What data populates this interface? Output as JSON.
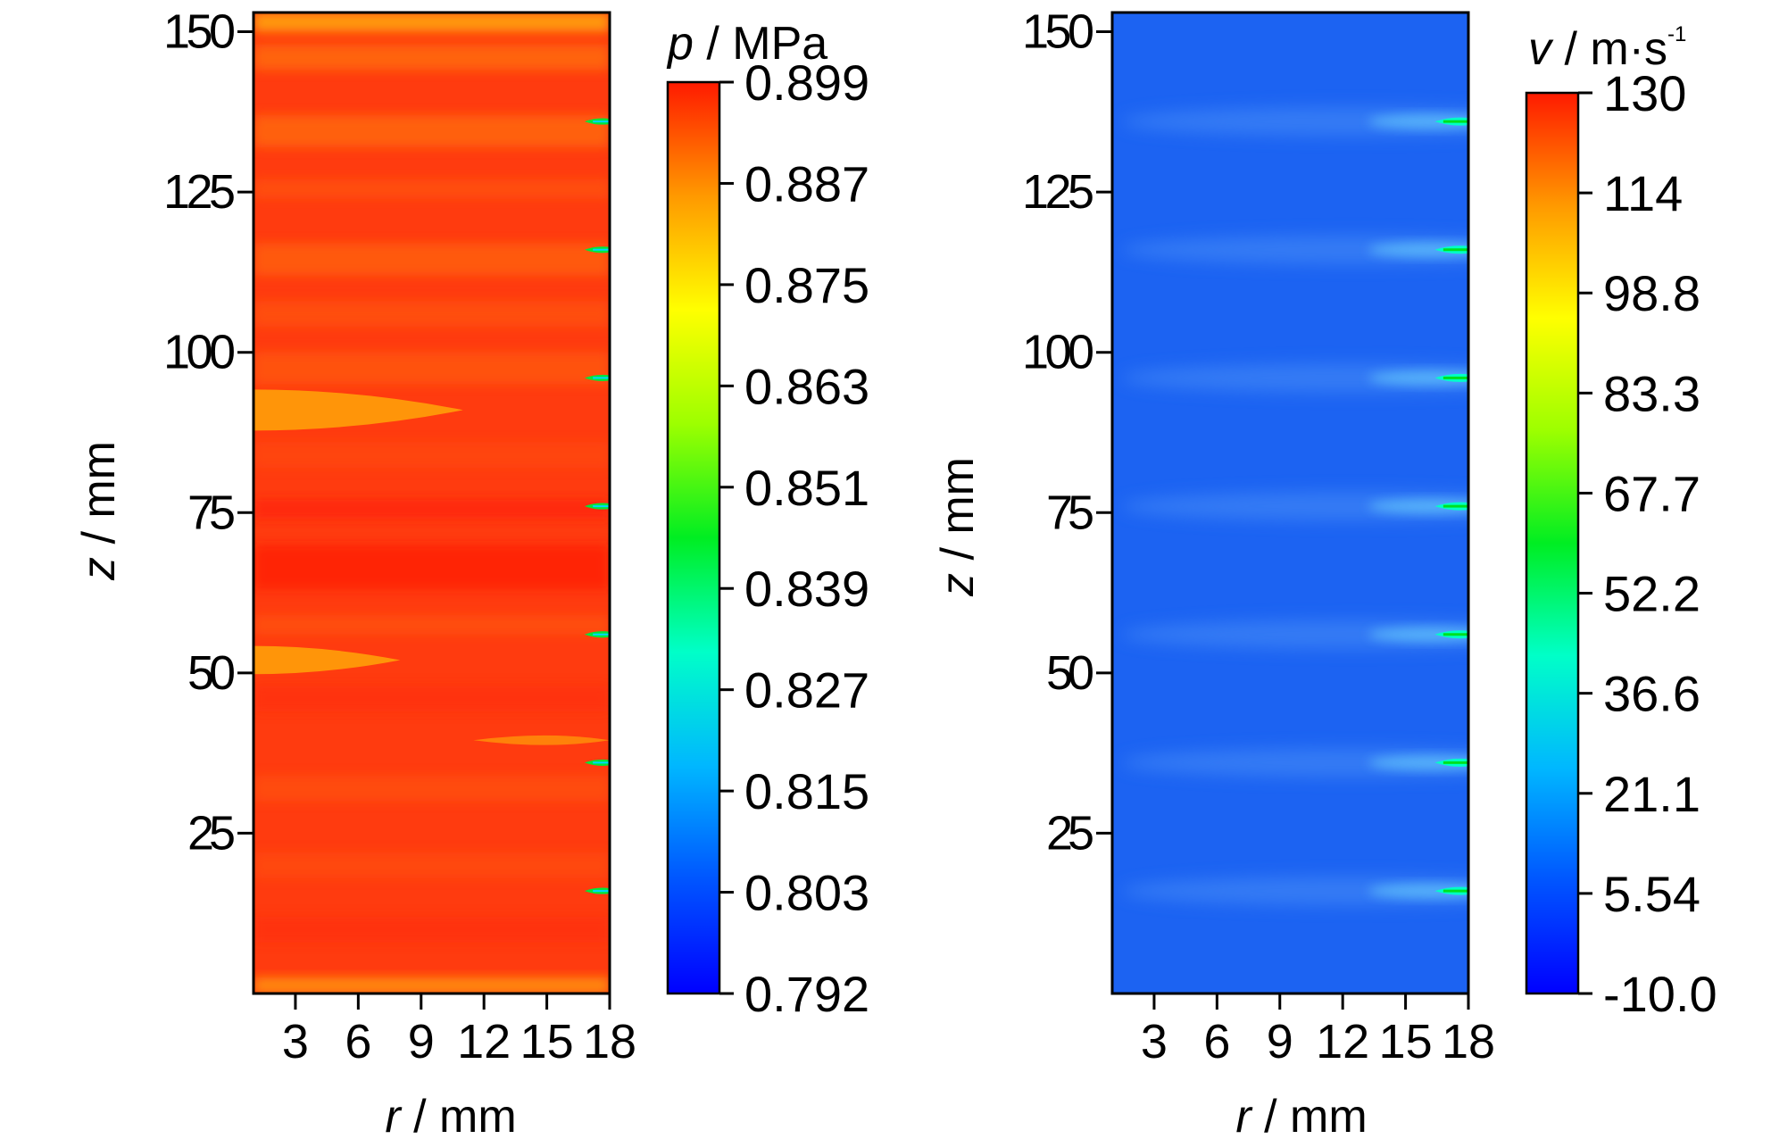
{
  "chart_data": [
    {
      "type": "heatmap",
      "panel": "pressure",
      "xlabel": {
        "symbol": "r",
        "unit": "mm"
      },
      "ylabel": {
        "symbol": "z",
        "unit": "mm"
      },
      "x_ticks": [
        3,
        6,
        9,
        12,
        15,
        18
      ],
      "y_ticks": [
        25,
        50,
        75,
        100,
        125,
        150
      ],
      "xlim": [
        1,
        18
      ],
      "ylim": [
        0,
        153
      ],
      "colorbar": {
        "symbol": "p",
        "unit": "MPa",
        "sup": "",
        "min": 0.792,
        "max": 0.899,
        "tick_labels": [
          "0.899",
          "0.887",
          "0.875",
          "0.863",
          "0.851",
          "0.839",
          "0.827",
          "0.815",
          "0.803",
          "0.792"
        ]
      },
      "field": {
        "base_color": "#ff3b0f",
        "jet_z": [
          16,
          36,
          56,
          76,
          96,
          116,
          136
        ],
        "note_values": "field mostly 0.890-0.899 MPa; local minima near r=18 at jet heights"
      }
    },
    {
      "type": "heatmap",
      "panel": "velocity",
      "xlabel": {
        "symbol": "r",
        "unit": "mm"
      },
      "ylabel": {
        "symbol": "z",
        "unit": "mm"
      },
      "x_ticks": [
        3,
        6,
        9,
        12,
        15,
        18
      ],
      "y_ticks": [
        25,
        50,
        75,
        100,
        125,
        150
      ],
      "xlim": [
        1,
        18
      ],
      "ylim": [
        0,
        153
      ],
      "colorbar": {
        "symbol": "v",
        "unit": "m·s",
        "sup": "-1",
        "min": -10.0,
        "max": 130,
        "tick_labels": [
          "130",
          "114",
          "98.8",
          "83.3",
          "67.7",
          "52.2",
          "36.6",
          "21.1",
          "5.54",
          "-10.0"
        ]
      },
      "field": {
        "base_color": "#1c63f2",
        "jet_z": [
          16,
          36,
          56,
          76,
          96,
          116,
          136
        ],
        "note_values": "background about 0 m/s; jets near r=17-18 reach ~50 m/s"
      }
    }
  ]
}
